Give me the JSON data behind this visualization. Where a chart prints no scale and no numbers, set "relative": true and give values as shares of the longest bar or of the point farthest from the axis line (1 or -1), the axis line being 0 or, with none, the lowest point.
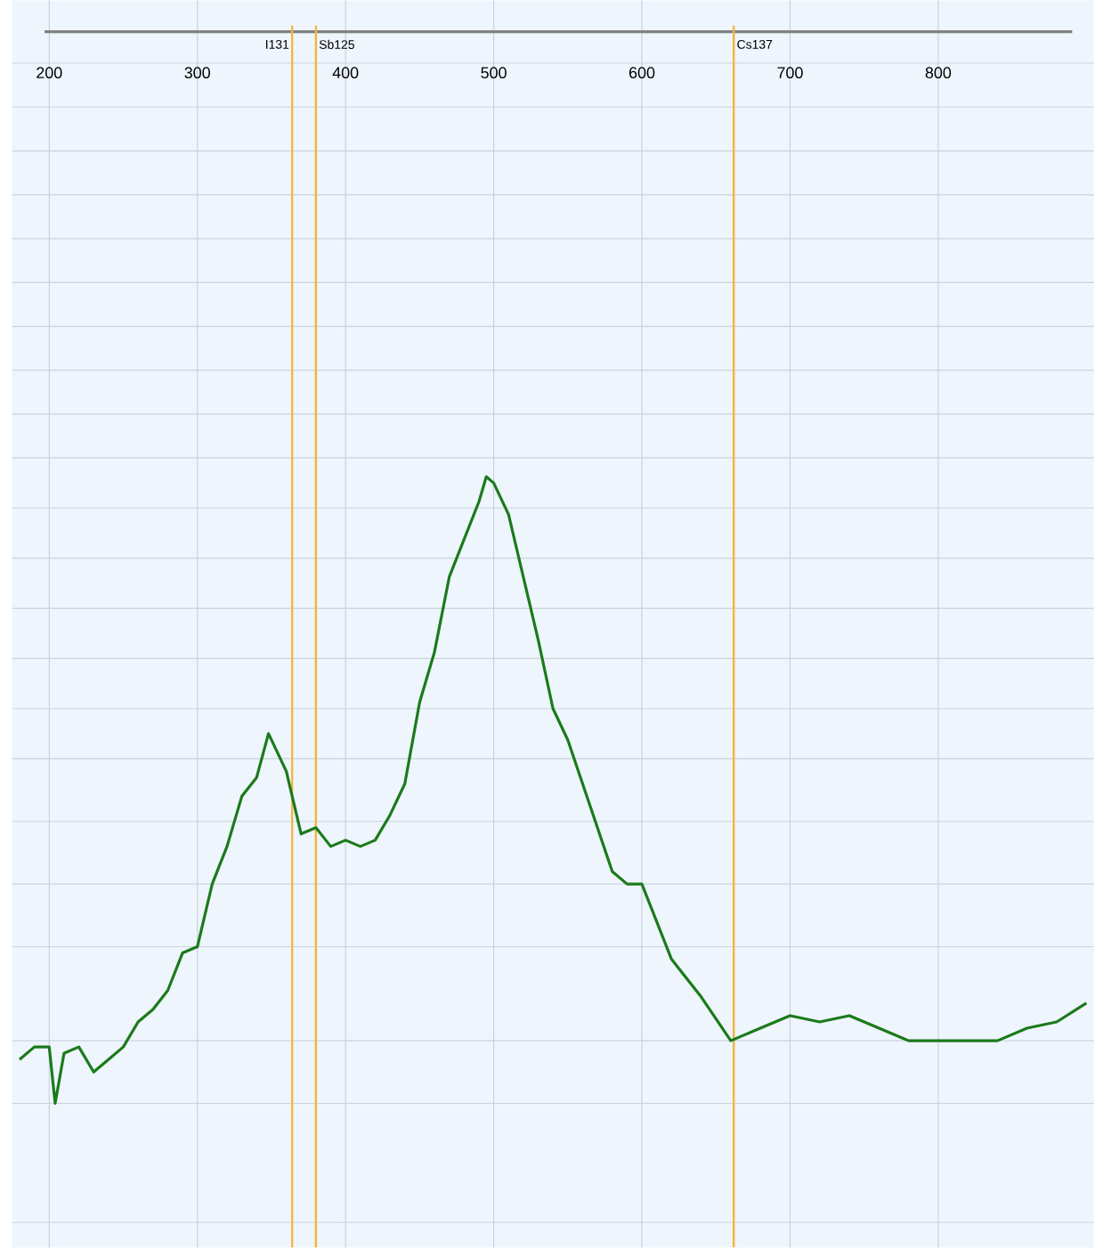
{
  "chart_data": {
    "type": "line",
    "relative": true,
    "color": "#1b7a1b",
    "grid": true,
    "marker": "none",
    "line_style": "solid",
    "x": [
      180,
      190,
      200,
      204,
      210,
      220,
      230,
      240,
      250,
      260,
      270,
      280,
      290,
      300,
      310,
      320,
      330,
      340,
      348,
      360,
      370,
      380,
      390,
      400,
      410,
      420,
      430,
      440,
      450,
      460,
      470,
      480,
      490,
      495,
      500,
      510,
      520,
      530,
      540,
      550,
      560,
      570,
      580,
      590,
      600,
      620,
      640,
      660,
      680,
      700,
      720,
      740,
      760,
      780,
      800,
      820,
      840,
      860,
      880,
      900
    ],
    "values": [
      0.07,
      0.09,
      0.09,
      0.0,
      0.08,
      0.09,
      0.05,
      0.07,
      0.09,
      0.13,
      0.15,
      0.18,
      0.24,
      0.25,
      0.35,
      0.41,
      0.49,
      0.52,
      0.59,
      0.53,
      0.43,
      0.44,
      0.41,
      0.42,
      0.41,
      0.42,
      0.46,
      0.51,
      0.64,
      0.72,
      0.84,
      0.9,
      0.96,
      1.0,
      0.99,
      0.94,
      0.84,
      0.74,
      0.63,
      0.58,
      0.51,
      0.44,
      0.37,
      0.35,
      0.35,
      0.23,
      0.17,
      0.1,
      0.12,
      0.14,
      0.13,
      0.14,
      0.12,
      0.1,
      0.1,
      0.1,
      0.1,
      0.12,
      0.13,
      0.16
    ],
    "xlim": [
      175,
      905
    ],
    "xticks": [
      200,
      300,
      400,
      500,
      600,
      700,
      800
    ],
    "ref_lines": [
      {
        "axis": "x",
        "value": 364,
        "label": "I131",
        "color": "#f5b43c"
      },
      {
        "axis": "x",
        "value": 380,
        "label": "Sb125",
        "color": "#f5b43c"
      },
      {
        "axis": "x",
        "value": 662,
        "label": "Cs137",
        "color": "#f5b43c"
      }
    ]
  }
}
